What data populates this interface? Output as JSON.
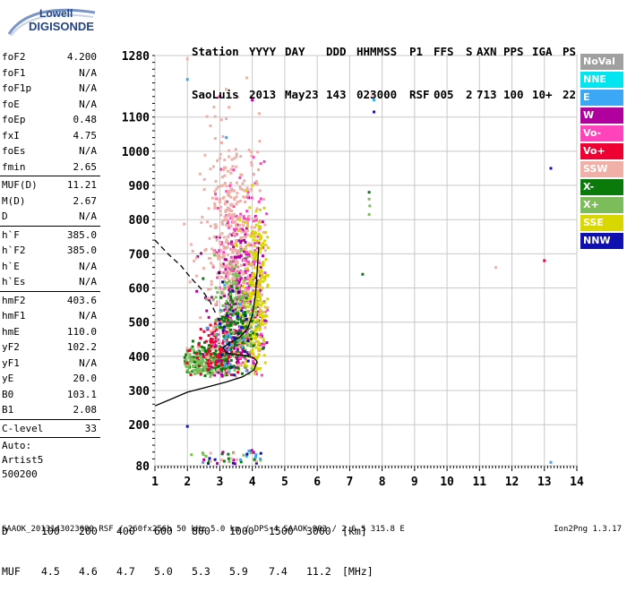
{
  "logo": {
    "line1": "Lowell",
    "line2": "DIGISONDE"
  },
  "header": {
    "labels": [
      "Station",
      "YYYY",
      "DAY",
      "DDD",
      "HHMMSS",
      "P1",
      "FFS",
      "S",
      "AXN",
      "PPS",
      "IGA",
      "PS"
    ],
    "values": [
      "SaoLuis",
      "2013",
      "May23",
      "143",
      "023000",
      "RSF",
      "005",
      "2",
      "713",
      "100",
      "10+",
      "22"
    ]
  },
  "params": [
    {
      "k": "foF2",
      "v": "4.200"
    },
    {
      "k": "foF1",
      "v": "N/A"
    },
    {
      "k": "foF1p",
      "v": "N/A"
    },
    {
      "k": "foE",
      "v": "N/A"
    },
    {
      "k": "foEp",
      "v": "0.48"
    },
    {
      "k": "fxI",
      "v": "4.75"
    },
    {
      "k": "foEs",
      "v": "N/A"
    },
    {
      "k": "fmin",
      "v": "2.65"
    },
    {
      "sep": true
    },
    {
      "k": "MUF(D)",
      "v": "11.21"
    },
    {
      "k": "M(D)",
      "v": "2.67"
    },
    {
      "k": "D",
      "v": "N/A"
    },
    {
      "sep": true
    },
    {
      "k": "h`F",
      "v": "385.0"
    },
    {
      "k": "h`F2",
      "v": "385.0"
    },
    {
      "k": "h`E",
      "v": "N/A"
    },
    {
      "k": "h`Es",
      "v": "N/A"
    },
    {
      "sep": true
    },
    {
      "k": "hmF2",
      "v": "403.6"
    },
    {
      "k": "hmF1",
      "v": "N/A"
    },
    {
      "k": "hmE",
      "v": "110.0"
    },
    {
      "k": "yF2",
      "v": "102.2"
    },
    {
      "k": "yF1",
      "v": "N/A"
    },
    {
      "k": "yE",
      "v": "20.0"
    },
    {
      "k": "B0",
      "v": "103.1"
    },
    {
      "k": "B1",
      "v": "2.08"
    },
    {
      "sep": true
    },
    {
      "k": "C-level",
      "v": "33"
    },
    {
      "sep": true
    }
  ],
  "auto_block": [
    "Auto:",
    "Artist5",
    "500200"
  ],
  "legend": [
    {
      "label": "NoVal",
      "color": "#a0a0a0"
    },
    {
      "label": "NNE",
      "color": "#00e5f0"
    },
    {
      "label": "E",
      "color": "#3ba7f5"
    },
    {
      "label": "W",
      "color": "#b0009e"
    },
    {
      "label": "Vo-",
      "color": "#ff44bb"
    },
    {
      "label": "Vo+",
      "color": "#ee0033"
    },
    {
      "label": "SSW",
      "color": "#f0b0a8"
    },
    {
      "label": "X-",
      "color": "#0a7a0a"
    },
    {
      "label": "X+",
      "color": "#7cbc5a"
    },
    {
      "label": "SSE",
      "color": "#d8d800"
    },
    {
      "label": "NNW",
      "color": "#1010b0"
    }
  ],
  "dtable": {
    "row1_label": "D",
    "row1": [
      "100",
      "200",
      "400",
      "600",
      "800",
      "1000",
      "1500",
      "3000"
    ],
    "row1_unit": "[km]",
    "row2_label": "MUF",
    "row2": [
      "4.5",
      "4.6",
      "4.7",
      "5.0",
      "5.3",
      "5.9",
      "7.4",
      "11.2"
    ],
    "row2_unit": "[MHz]"
  },
  "footer": "SAAOK_2013143023000.RSF / 260fx256h 50 kHz 5.0 km / DPS-4 SAAOK 903 / 2.6 S 315.8 E",
  "version": "Ion2Png 1.3.17",
  "chart_data": {
    "type": "scatter",
    "x_ticks": [
      1,
      2,
      3,
      4,
      5,
      6,
      7,
      8,
      9,
      10,
      11,
      12,
      13,
      14
    ],
    "y_ticks": [
      80,
      200,
      300,
      400,
      500,
      600,
      700,
      800,
      900,
      1000,
      1100,
      1280
    ],
    "xlim": [
      1,
      14
    ],
    "ylim": [
      80,
      1280
    ],
    "grid": true,
    "legend_position": "right",
    "traces": [
      {
        "style": "solid",
        "points": [
          [
            1.0,
            255
          ],
          [
            1.5,
            275
          ],
          [
            2.0,
            295
          ],
          [
            2.6,
            310
          ],
          [
            3.2,
            325
          ],
          [
            3.7,
            340
          ],
          [
            4.05,
            360
          ],
          [
            4.15,
            385
          ],
          [
            4.05,
            395
          ],
          [
            3.8,
            402
          ],
          [
            3.5,
            405
          ],
          [
            3.2,
            410
          ],
          [
            3.1,
            425
          ],
          [
            3.3,
            440
          ],
          [
            3.6,
            455
          ],
          [
            3.85,
            480
          ],
          [
            4.0,
            520
          ],
          [
            4.1,
            580
          ],
          [
            4.15,
            650
          ],
          [
            4.2,
            720
          ]
        ]
      },
      {
        "style": "dashed",
        "points": [
          [
            1.0,
            740
          ],
          [
            1.4,
            700
          ],
          [
            1.8,
            665
          ],
          [
            2.1,
            630
          ],
          [
            2.4,
            600
          ],
          [
            2.7,
            560
          ],
          [
            2.9,
            520
          ]
        ]
      }
    ],
    "echo_clusters": [
      {
        "color": "#0a7a0a",
        "cx": 2.7,
        "cy": 390,
        "sx": 0.45,
        "sy": 25,
        "n": 160
      },
      {
        "color": "#7cbc5a",
        "cx": 2.4,
        "cy": 380,
        "sx": 0.45,
        "sy": 22,
        "n": 140
      },
      {
        "color": "#ee0033",
        "cx": 3.1,
        "cy": 420,
        "sx": 0.5,
        "sy": 40,
        "n": 150
      },
      {
        "color": "#b0009e",
        "cx": 3.6,
        "cy": 560,
        "sx": 0.45,
        "sy": 130,
        "n": 320
      },
      {
        "color": "#ff44bb",
        "cx": 3.7,
        "cy": 640,
        "sx": 0.4,
        "sy": 160,
        "n": 180
      },
      {
        "color": "#f0b0a8",
        "cx": 3.4,
        "cy": 720,
        "sx": 0.5,
        "sy": 170,
        "n": 420
      },
      {
        "color": "#d8d800",
        "cx": 4.1,
        "cy": 560,
        "sx": 0.2,
        "sy": 130,
        "n": 260
      },
      {
        "color": "#7cbc5a",
        "cx": 3.5,
        "cy": 520,
        "sx": 0.35,
        "sy": 90,
        "n": 140
      },
      {
        "color": "#0a7a0a",
        "cx": 3.5,
        "cy": 480,
        "sx": 0.3,
        "sy": 70,
        "n": 90
      },
      {
        "color": "#3ba7f5",
        "cx": 3.3,
        "cy": 460,
        "sx": 0.3,
        "sy": 60,
        "n": 30
      },
      {
        "color": "#1010b0",
        "cx": 3.4,
        "cy": 470,
        "sx": 0.3,
        "sy": 80,
        "n": 25
      }
    ],
    "isolated_points": [
      {
        "color": "#0a7a0a",
        "x": 7.6,
        "y": 880
      },
      {
        "color": "#7cbc5a",
        "x": 7.6,
        "y": 860
      },
      {
        "color": "#7cbc5a",
        "x": 7.62,
        "y": 840
      },
      {
        "color": "#7cbc5a",
        "x": 7.6,
        "y": 815
      },
      {
        "color": "#3ba7f5",
        "x": 7.75,
        "y": 1150
      },
      {
        "color": "#1010b0",
        "x": 7.75,
        "y": 1115
      },
      {
        "color": "#f0b0a8",
        "x": 7.7,
        "y": 1165
      },
      {
        "color": "#1010b0",
        "x": 13.2,
        "y": 950
      },
      {
        "color": "#ee0033",
        "x": 13.0,
        "y": 680
      },
      {
        "color": "#0a7a0a",
        "x": 7.4,
        "y": 640
      },
      {
        "color": "#3ba7f5",
        "x": 13.2,
        "y": 90
      },
      {
        "color": "#f0b0a8",
        "x": 11.5,
        "y": 660
      },
      {
        "color": "#1010b0",
        "x": 2.0,
        "y": 195
      },
      {
        "color": "#3ba7f5",
        "x": 2.0,
        "y": 1210
      },
      {
        "color": "#b0009e",
        "x": 3.0,
        "y": 1160
      },
      {
        "color": "#3ba7f5",
        "x": 3.2,
        "y": 1040
      },
      {
        "color": "#b0009e",
        "x": 4.0,
        "y": 1150
      },
      {
        "color": "#f0b0a8",
        "x": 2.0,
        "y": 1270
      }
    ],
    "low_band_points": {
      "x_range": [
        2.0,
        4.3
      ],
      "y_range": [
        85,
        125
      ],
      "n": 45
    }
  }
}
